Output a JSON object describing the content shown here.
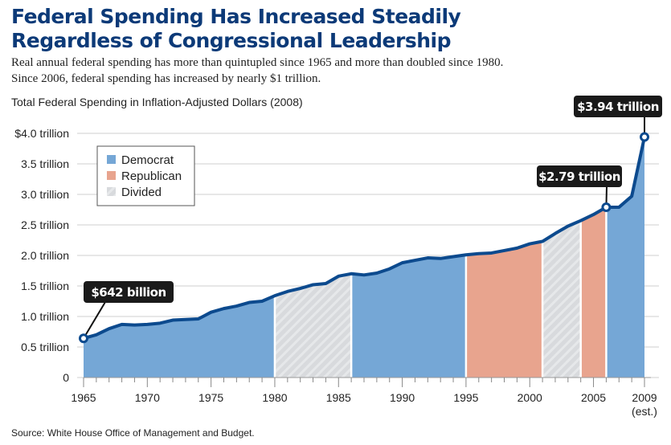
{
  "chart_data": {
    "type": "area",
    "title": "Federal Spending Has Increased Steadily Regardless of Congressional Leadership",
    "subtitle": [
      "Real annual federal spending has more than quintupled since 1965 and more than doubled since 1980.",
      "Since 2006, federal spending has increased by nearly $1 trillion."
    ],
    "ylabel": "Total Federal Spending in Inflation-Adjusted Dollars (2008)",
    "xlabel": "",
    "source": "Source: White House Office of Management and Budget.",
    "ylim": [
      0,
      4.0
    ],
    "xlim": [
      1965,
      2009
    ],
    "y_ticks": [
      {
        "v": 0,
        "label": "0"
      },
      {
        "v": 0.5,
        "label": "0.5 trillion"
      },
      {
        "v": 1,
        "label": "1.0 trillion"
      },
      {
        "v": 1.5,
        "label": "1.5 trillion"
      },
      {
        "v": 2,
        "label": "2.0 trillion"
      },
      {
        "v": 2.5,
        "label": "2.5 trillion"
      },
      {
        "v": 3,
        "label": "3.0 trillion"
      },
      {
        "v": 3.5,
        "label": "3.5 trillion"
      },
      {
        "v": 4,
        "label": "$4.0 trillion"
      }
    ],
    "x_ticks": [
      {
        "v": 1965,
        "label": "1965"
      },
      {
        "v": 1970,
        "label": "1970"
      },
      {
        "v": 1975,
        "label": "1975"
      },
      {
        "v": 1980,
        "label": "1980"
      },
      {
        "v": 1985,
        "label": "1985"
      },
      {
        "v": 1990,
        "label": "1990"
      },
      {
        "v": 1995,
        "label": "1995"
      },
      {
        "v": 2000,
        "label": "2000"
      },
      {
        "v": 2005,
        "label": "2005"
      },
      {
        "v": 2009,
        "label": "2009"
      }
    ],
    "x_note": "(est.)",
    "grid": true,
    "legend_position": "top-left",
    "legend": [
      {
        "name": "Democrat",
        "color": "#75a7d6",
        "pattern": "solid"
      },
      {
        "name": "Republican",
        "color": "#e8a48e",
        "pattern": "solid"
      },
      {
        "name": "Divided",
        "color": "#d8dadd",
        "pattern": "hatched"
      }
    ],
    "periods": [
      {
        "party": "Democrat",
        "start": 1965,
        "end": 1980
      },
      {
        "party": "Divided",
        "start": 1980,
        "end": 1986
      },
      {
        "party": "Democrat",
        "start": 1986,
        "end": 1995
      },
      {
        "party": "Republican",
        "start": 1995,
        "end": 2001
      },
      {
        "party": "Divided",
        "start": 2001,
        "end": 2004
      },
      {
        "party": "Republican",
        "start": 2004,
        "end": 2006
      },
      {
        "party": "Democrat",
        "start": 2006,
        "end": 2009
      }
    ],
    "x": [
      1965,
      1966,
      1967,
      1968,
      1969,
      1970,
      1971,
      1972,
      1973,
      1974,
      1975,
      1976,
      1977,
      1978,
      1979,
      1980,
      1981,
      1982,
      1983,
      1984,
      1985,
      1986,
      1987,
      1988,
      1989,
      1990,
      1991,
      1992,
      1993,
      1994,
      1995,
      1996,
      1997,
      1998,
      1999,
      2000,
      2001,
      2002,
      2003,
      2004,
      2005,
      2006,
      2007,
      2008,
      2009
    ],
    "values": [
      0.642,
      0.7,
      0.8,
      0.87,
      0.86,
      0.87,
      0.89,
      0.94,
      0.95,
      0.96,
      1.07,
      1.13,
      1.17,
      1.23,
      1.25,
      1.34,
      1.41,
      1.46,
      1.52,
      1.54,
      1.66,
      1.7,
      1.68,
      1.71,
      1.78,
      1.88,
      1.92,
      1.96,
      1.95,
      1.98,
      2.01,
      2.03,
      2.04,
      2.08,
      2.12,
      2.19,
      2.23,
      2.36,
      2.48,
      2.57,
      2.67,
      2.79,
      2.79,
      2.97,
      3.94
    ],
    "line_color": "#0c4a8e",
    "annotations": [
      {
        "x": 1965,
        "y": 0.642,
        "label": "$642 billion"
      },
      {
        "x": 2006,
        "y": 2.79,
        "label": "$2.79 trillion"
      },
      {
        "x": 2009,
        "y": 3.94,
        "label": "$3.94 trillion"
      }
    ]
  }
}
